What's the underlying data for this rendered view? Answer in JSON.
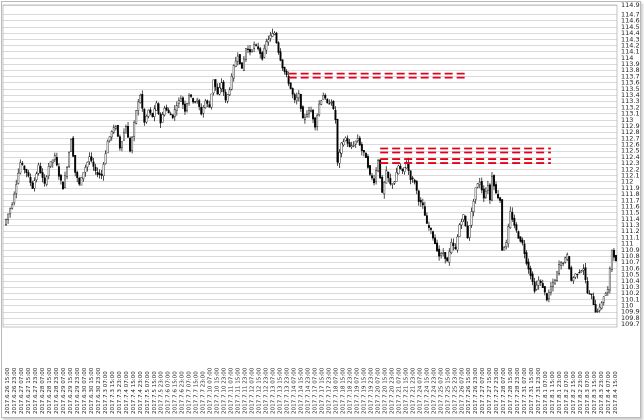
{
  "chart_data": {
    "type": "candlestick",
    "title": "",
    "xlabel": "",
    "ylabel": "",
    "ylim": [
      109.7,
      114.9
    ],
    "y_tick_step": 0.1,
    "y_labels": [
      "114.9",
      "114.7",
      "114.6",
      "114.5",
      "114.4",
      "114.3",
      "114.2",
      "114.1",
      "114",
      "113.9",
      "113.8",
      "113.7",
      "113.6",
      "113.5",
      "113.4",
      "113.3",
      "113.2",
      "113.1",
      "113",
      "112.9",
      "112.8",
      "112.7",
      "112.6",
      "112.5",
      "112.4",
      "112.3",
      "112.2",
      "112.1",
      "112",
      "111.9",
      "111.8",
      "111.7",
      "111.6",
      "111.5",
      "111.4",
      "111.3",
      "111.2",
      "111.1",
      "111",
      "110.9",
      "110.8",
      "110.7",
      "110.6",
      "110.5",
      "110.4",
      "110.3",
      "110.2",
      "110.1",
      "110",
      "109.9",
      "109.8",
      "109.7"
    ],
    "y_label_values": [
      114.9,
      114.75,
      114.65,
      114.55,
      114.45,
      114.35,
      114.25,
      114.15,
      114.05,
      113.95,
      113.85,
      113.75,
      113.65,
      113.55,
      113.45,
      113.35,
      113.25,
      113.15,
      113.05,
      112.95,
      112.85,
      112.75,
      112.65,
      112.55,
      112.45,
      112.35,
      112.25,
      112.15,
      112.05,
      111.95,
      111.85,
      111.75,
      111.65,
      111.55,
      111.45,
      111.35,
      111.25,
      111.15,
      111.05,
      110.95,
      110.85,
      110.75,
      110.65,
      110.55,
      110.45,
      110.35,
      110.25,
      110.15,
      110.05,
      109.95,
      109.85,
      109.75
    ],
    "x_labels": [
      "2017.6.26 15:00",
      "2017.6.26 23:00",
      "2017.6.27 07:00",
      "2017.6.27 15:00",
      "2017.6.27 23:00",
      "2017.6.28 07:00",
      "2017.6.28 15:00",
      "2017.6.28 23:00",
      "2017.6.29 07:00",
      "2017.6.29 15:00",
      "2017.6.29 23:00",
      "2017.6.30 07:00",
      "2017.6.30 15:00",
      "2017.6.30 23:00",
      "2017.7.3 07:00",
      "2017.7.3 15:00",
      "2017.7.3 23:00",
      "2017.7.4 07:00",
      "2017.7.4 15:00",
      "2017.7.4 23:00",
      "2017.7.5 07:00",
      "2017.7.5 15:00",
      "2017.7.5 23:00",
      "2017.7.6 07:00",
      "2017.7.6 15:00",
      "2017.7.6 23:00",
      "2017.7.7 07:00",
      "2017.7.7 15:00",
      "2017.7.7 23:00",
      "2017.7.10 07:00",
      "2017.7.10 15:00",
      "2017.7.10 23:00",
      "2017.7.11 07:00",
      "2017.7.11 15:00",
      "2017.7.11 23:00",
      "2017.7.12 07:00",
      "2017.7.12 15:00",
      "2017.7.12 23:00",
      "2017.7.13 07:00",
      "2017.7.13 15:00",
      "2017.7.13 23:00",
      "2017.7.14 07:00",
      "2017.7.14 15:00",
      "2017.7.14 23:00",
      "2017.7.17 07:00",
      "2017.7.17 15:00",
      "2017.7.17 23:00",
      "2017.7.18 07:00",
      "2017.7.18 15:00",
      "2017.7.18 23:00",
      "2017.7.19 07:00",
      "2017.7.19 15:00",
      "2017.7.19 23:00",
      "2017.7.20 07:00",
      "2017.7.20 15:00",
      "2017.7.20 23:00",
      "2017.7.21 07:00",
      "2017.7.21 15:00",
      "2017.7.21 23:00",
      "2017.7.24 07:00",
      "2017.7.24 15:00",
      "2017.7.24 23:00",
      "2017.7.25 07:00",
      "2017.7.25 15:00",
      "2017.7.25 23:00",
      "2017.7.26 07:00",
      "2017.7.26 15:00",
      "2017.7.26 23:00",
      "2017.7.27 07:00",
      "2017.7.27 15:00",
      "2017.7.27 23:00",
      "2017.7.28 07:00",
      "2017.7.28 15:00",
      "2017.7.28 23:00",
      "2017.7.31 07:00",
      "2017.7.31 15:00",
      "2017.7.31 23:00",
      "2017.8.1 07:00",
      "2017.8.1 15:00",
      "2017.8.1 23:00",
      "2017.8.2 07:00",
      "2017.8.2 15:00",
      "2017.8.2 23:00",
      "2017.8.3 07:00",
      "2017.8.3 15:00",
      "2017.8.3 23:00",
      "2017.8.4 07:00",
      "2017.8.4 15:00"
    ],
    "price_path": [
      [
        0,
        111.35
      ],
      [
        4,
        111.7
      ],
      [
        8,
        112.35
      ],
      [
        11,
        112.2
      ],
      [
        14,
        111.95
      ],
      [
        17,
        112.3
      ],
      [
        20,
        112.0
      ],
      [
        22,
        112.3
      ],
      [
        25,
        112.45
      ],
      [
        27,
        112.15
      ],
      [
        29,
        111.95
      ],
      [
        31,
        112.3
      ],
      [
        33,
        112.75
      ],
      [
        35,
        112.2
      ],
      [
        37,
        112.0
      ],
      [
        39,
        112.2
      ],
      [
        42,
        112.45
      ],
      [
        45,
        112.2
      ],
      [
        48,
        112.15
      ],
      [
        51,
        112.7
      ],
      [
        53,
        112.85
      ],
      [
        55,
        112.95
      ],
      [
        57,
        112.6
      ],
      [
        60,
        112.95
      ],
      [
        62,
        112.55
      ],
      [
        65,
        113.2
      ],
      [
        67,
        113.45
      ],
      [
        69,
        113.0
      ],
      [
        71,
        113.2
      ],
      [
        73,
        113.1
      ],
      [
        75,
        113.3
      ],
      [
        77,
        113.0
      ],
      [
        79,
        113.25
      ],
      [
        81,
        113.15
      ],
      [
        83,
        113.1
      ],
      [
        85,
        113.3
      ],
      [
        87,
        113.4
      ],
      [
        89,
        113.2
      ],
      [
        91,
        113.45
      ],
      [
        93,
        113.35
      ],
      [
        95,
        113.35
      ],
      [
        97,
        113.15
      ],
      [
        99,
        113.35
      ],
      [
        101,
        113.25
      ],
      [
        103,
        113.7
      ],
      [
        105,
        113.45
      ],
      [
        107,
        113.65
      ],
      [
        109,
        113.35
      ],
      [
        111,
        113.55
      ],
      [
        113,
        113.9
      ],
      [
        115,
        114.1
      ],
      [
        117,
        113.85
      ],
      [
        119,
        114.2
      ],
      [
        121,
        114.15
      ],
      [
        123,
        114.25
      ],
      [
        125,
        114.2
      ],
      [
        127,
        114.05
      ],
      [
        129,
        114.3
      ],
      [
        131,
        114.4
      ],
      [
        133,
        114.45
      ],
      [
        135,
        114.15
      ],
      [
        137,
        113.9
      ],
      [
        139,
        113.75
      ],
      [
        141,
        113.55
      ],
      [
        143,
        113.35
      ],
      [
        145,
        113.45
      ],
      [
        147,
        113.05
      ],
      [
        149,
        113.15
      ],
      [
        151,
        113.2
      ],
      [
        153,
        112.95
      ],
      [
        155,
        113.3
      ],
      [
        157,
        113.45
      ],
      [
        159,
        113.3
      ],
      [
        161,
        113.35
      ],
      [
        163,
        113.05
      ],
      [
        164,
        112.35
      ],
      [
        166,
        112.65
      ],
      [
        168,
        112.75
      ],
      [
        170,
        112.6
      ],
      [
        172,
        112.65
      ],
      [
        174,
        112.75
      ],
      [
        176,
        112.55
      ],
      [
        178,
        112.45
      ],
      [
        180,
        112.15
      ],
      [
        182,
        112.05
      ],
      [
        184,
        112.4
      ],
      [
        186,
        111.85
      ],
      [
        188,
        112.2
      ],
      [
        190,
        112.0
      ],
      [
        192,
        112.05
      ],
      [
        194,
        112.3
      ],
      [
        196,
        112.2
      ],
      [
        198,
        112.35
      ],
      [
        200,
        112.1
      ],
      [
        202,
        112.05
      ],
      [
        204,
        111.75
      ],
      [
        206,
        111.65
      ],
      [
        208,
        111.35
      ],
      [
        210,
        111.25
      ],
      [
        212,
        111.05
      ],
      [
        214,
        110.85
      ],
      [
        216,
        110.9
      ],
      [
        218,
        110.75
      ],
      [
        220,
        111.05
      ],
      [
        222,
        110.95
      ],
      [
        224,
        111.35
      ],
      [
        226,
        111.5
      ],
      [
        228,
        111.15
      ],
      [
        230,
        111.55
      ],
      [
        232,
        111.95
      ],
      [
        234,
        112.05
      ],
      [
        236,
        111.8
      ],
      [
        238,
        112.0
      ],
      [
        239,
        111.75
      ],
      [
        240,
        112.15
      ],
      [
        242,
        111.85
      ],
      [
        244,
        111.75
      ],
      [
        245,
        110.95
      ],
      [
        247,
        111.05
      ],
      [
        249,
        111.55
      ],
      [
        251,
        111.35
      ],
      [
        253,
        111.15
      ],
      [
        255,
        111.05
      ],
      [
        257,
        110.75
      ],
      [
        259,
        110.55
      ],
      [
        261,
        110.3
      ],
      [
        263,
        110.45
      ],
      [
        265,
        110.35
      ],
      [
        267,
        110.15
      ],
      [
        269,
        110.35
      ],
      [
        271,
        110.45
      ],
      [
        273,
        110.7
      ],
      [
        275,
        110.75
      ],
      [
        277,
        110.85
      ],
      [
        279,
        110.45
      ],
      [
        281,
        110.55
      ],
      [
        283,
        110.6
      ],
      [
        285,
        110.65
      ],
      [
        287,
        110.25
      ],
      [
        289,
        110.2
      ],
      [
        291,
        109.95
      ],
      [
        293,
        110.0
      ],
      [
        295,
        110.2
      ],
      [
        297,
        110.3
      ],
      [
        299,
        110.95
      ],
      [
        301,
        110.75
      ]
    ],
    "series": [
      {
        "values": [
          113.76,
          113.76,
          113.76
        ]
      },
      {
        "values": [
          112.55,
          112.55,
          112.55
        ]
      },
      {
        "values": [
          112.38,
          112.38,
          112.38
        ]
      }
    ],
    "grid": true,
    "legend": "none",
    "colors": {
      "candle": "#000000",
      "grid": "#b5b5b5",
      "resistance": "#e3001b",
      "border": "#b9b9b9"
    }
  }
}
